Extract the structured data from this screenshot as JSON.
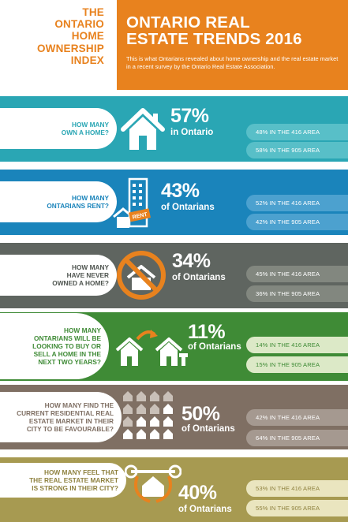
{
  "brand": {
    "line1": "THE",
    "line2": "ONTARIO",
    "line3": "HOME",
    "line4": "OWNERSHIP",
    "line5": "INDEX"
  },
  "title": {
    "line1": "ONTARIO REAL",
    "line2": "ESTATE TRENDS 2016",
    "subtitle": "This is what Ontarians revealed about home ownership and the real estate market in a recent survey by the Ontario Real Estate Association."
  },
  "colors": {
    "orange": "#e8821e",
    "teal": "#2aa6b4",
    "blue": "#1a84bb",
    "gray": "#5f6560",
    "green": "#3f8b36",
    "taupe": "#7f6f63",
    "olive": "#a79a51"
  },
  "sections": [
    {
      "q1": "HOW MANY",
      "q2": "OWN A HOME?",
      "q3": "",
      "q4": "",
      "q5": "",
      "pct": "57%",
      "sub": "in Ontario",
      "icon": "house-icon",
      "stat1": "48% IN THE 416 AREA",
      "stat2": "58% IN THE 905 AREA"
    },
    {
      "q1": "HOW MANY",
      "q2": "ONTARIANS RENT?",
      "q3": "",
      "q4": "",
      "q5": "",
      "pct": "43%",
      "sub": "of Ontarians",
      "icon": "rent-building-icon",
      "icon_label": "RENT",
      "stat1": "52% IN THE 416 AREA",
      "stat2": "42% IN THE 905 AREA"
    },
    {
      "q1": "HOW MANY",
      "q2": "HAVE NEVER",
      "q3": "OWNED A HOME?",
      "q4": "",
      "q5": "",
      "pct": "34%",
      "sub": "of Ontarians",
      "icon": "no-house-icon",
      "stat1": "45% IN THE 416 AREA",
      "stat2": "36% IN THE 905 AREA"
    },
    {
      "q1": "HOW MANY",
      "q2": "ONTARIANS WILL BE",
      "q3": "LOOKING TO BUY OR",
      "q4": "SELL A HOME IN THE",
      "q5": "NEXT TWO YEARS?",
      "pct": "11%",
      "sub": "of Ontarians",
      "icon": "house-move-icon",
      "stat1": "14% IN THE 416 AREA",
      "stat2": "15% IN THE 905 AREA"
    },
    {
      "q1": "HOW MANY FIND THE",
      "q2": "CURRENT RESIDENTIAL REAL",
      "q3": "ESTATE MARKET IN THEIR",
      "q4": "CITY TO BE FAVOURABLE?",
      "q5": "",
      "pct": "50%",
      "sub": "of Ontarians",
      "icon": "house-grid-icon",
      "stat1": "42% IN THE 416 AREA",
      "stat2": "64% IN THE 905 AREA"
    },
    {
      "q1": "HOW MANY FEEL THAT",
      "q2": "THE REAL ESTATE MARKET",
      "q3": "IS STRONG IN THEIR CITY?",
      "q4": "",
      "q5": "",
      "pct": "40%",
      "sub": "of Ontarians",
      "icon": "strong-house-icon",
      "stat1": "53% IN THE 416 AREA",
      "stat2": "55% IN THE 905 AREA"
    }
  ]
}
